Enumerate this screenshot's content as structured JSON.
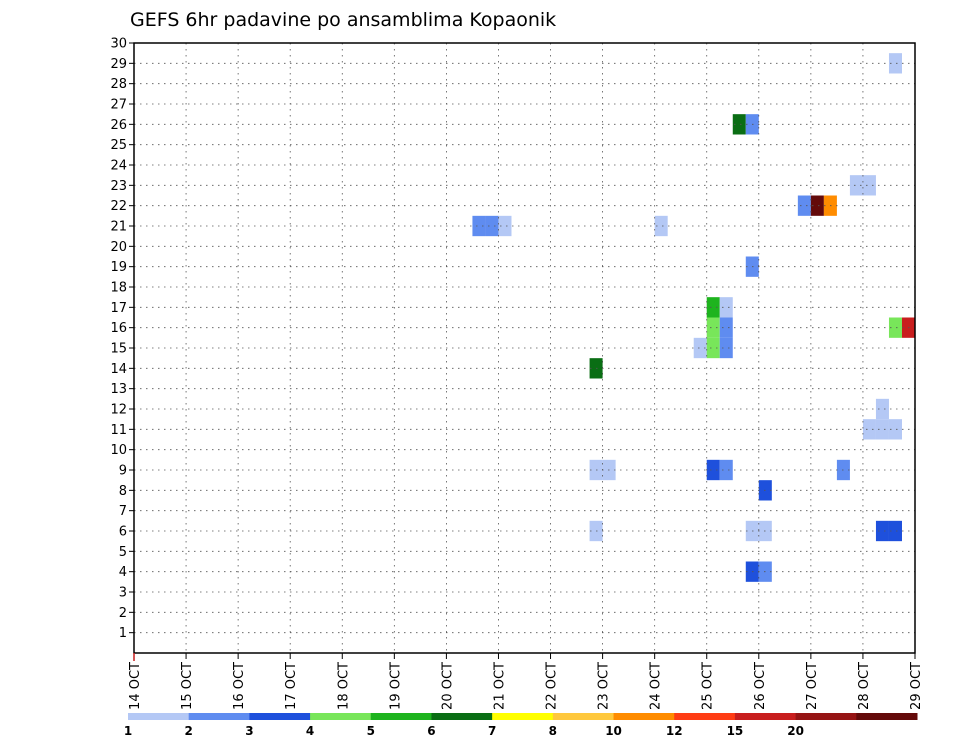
{
  "chart_data": {
    "type": "heatmap",
    "title": "GEFS 6hr padavine po ansamblima Kopaonik",
    "xlabel": "",
    "ylabel": "",
    "x_ticks": [
      "14 OCT",
      "15 OCT",
      "16 OCT",
      "17 OCT",
      "18 OCT",
      "19 OCT",
      "20 OCT",
      "21 OCT",
      "22 OCT",
      "23 OCT",
      "24 OCT",
      "25 OCT",
      "26 OCT",
      "27 OCT",
      "28 OCT",
      "29 OCT"
    ],
    "xlim": [
      0,
      15
    ],
    "y_ticks": [
      1,
      2,
      3,
      4,
      5,
      6,
      7,
      8,
      9,
      10,
      11,
      12,
      13,
      14,
      15,
      16,
      17,
      18,
      19,
      20,
      21,
      22,
      23,
      24,
      25,
      26,
      27,
      28,
      29,
      30
    ],
    "ylim": [
      0,
      30
    ],
    "grid": true,
    "legend_position": "bottom",
    "levels": [
      {
        "label": "1",
        "color": "#b4c8f5"
      },
      {
        "label": "2",
        "color": "#5f8cf0"
      },
      {
        "label": "3",
        "color": "#1e50dc"
      },
      {
        "label": "4",
        "color": "#78e65a"
      },
      {
        "label": "5",
        "color": "#1eb41e"
      },
      {
        "label": "6",
        "color": "#0a6e14"
      },
      {
        "label": "7",
        "color": "#ffff00"
      },
      {
        "label": "8",
        "color": "#ffc83c"
      },
      {
        "label": "10",
        "color": "#ff8c00"
      },
      {
        "label": "12",
        "color": "#ff3c14"
      },
      {
        "label": "15",
        "color": "#c81e1e"
      },
      {
        "label": "20",
        "color": "#961414"
      },
      {
        "label": "",
        "color": "#640a0a"
      }
    ],
    "cells": [
      {
        "day": 6.5,
        "member": 21,
        "level": 1
      },
      {
        "day": 6.75,
        "member": 21,
        "level": 1
      },
      {
        "day": 7.0,
        "member": 21,
        "level": 0
      },
      {
        "day": 8.75,
        "member": 14,
        "level": 5
      },
      {
        "day": 8.75,
        "member": 9,
        "level": 0
      },
      {
        "day": 9.0,
        "member": 9,
        "level": 0
      },
      {
        "day": 8.75,
        "member": 6,
        "level": 0
      },
      {
        "day": 10.0,
        "member": 21,
        "level": 0
      },
      {
        "day": 10.75,
        "member": 15,
        "level": 0
      },
      {
        "day": 11.0,
        "member": 17,
        "level": 4
      },
      {
        "day": 11.0,
        "member": 16,
        "level": 3
      },
      {
        "day": 11.0,
        "member": 15,
        "level": 3
      },
      {
        "day": 11.25,
        "member": 17,
        "level": 0
      },
      {
        "day": 11.25,
        "member": 16,
        "level": 1
      },
      {
        "day": 11.25,
        "member": 15,
        "level": 1
      },
      {
        "day": 11.0,
        "member": 9,
        "level": 2
      },
      {
        "day": 11.25,
        "member": 9,
        "level": 1
      },
      {
        "day": 11.5,
        "member": 26,
        "level": 5
      },
      {
        "day": 11.75,
        "member": 26,
        "level": 1
      },
      {
        "day": 11.75,
        "member": 19,
        "level": 1
      },
      {
        "day": 11.75,
        "member": 6,
        "level": 0
      },
      {
        "day": 12.0,
        "member": 6,
        "level": 0
      },
      {
        "day": 11.75,
        "member": 4,
        "level": 2
      },
      {
        "day": 12.0,
        "member": 4,
        "level": 1
      },
      {
        "day": 12.0,
        "member": 8,
        "level": 2
      },
      {
        "day": 12.75,
        "member": 22,
        "level": 1
      },
      {
        "day": 13.0,
        "member": 22,
        "level": 12
      },
      {
        "day": 13.25,
        "member": 22,
        "level": 8
      },
      {
        "day": 13.5,
        "member": 9,
        "level": 1
      },
      {
        "day": 13.75,
        "member": 23,
        "level": 0
      },
      {
        "day": 14.0,
        "member": 23,
        "level": 0
      },
      {
        "day": 14.25,
        "member": 12,
        "level": 0
      },
      {
        "day": 14.0,
        "member": 11,
        "level": 0
      },
      {
        "day": 14.25,
        "member": 11,
        "level": 0
      },
      {
        "day": 14.5,
        "member": 11,
        "level": 0
      },
      {
        "day": 14.25,
        "member": 6,
        "level": 2
      },
      {
        "day": 14.5,
        "member": 6,
        "level": 2
      },
      {
        "day": 14.5,
        "member": 29,
        "level": 0
      },
      {
        "day": 14.5,
        "member": 16,
        "level": 3
      },
      {
        "day": 14.75,
        "member": 16,
        "level": 10
      }
    ]
  }
}
